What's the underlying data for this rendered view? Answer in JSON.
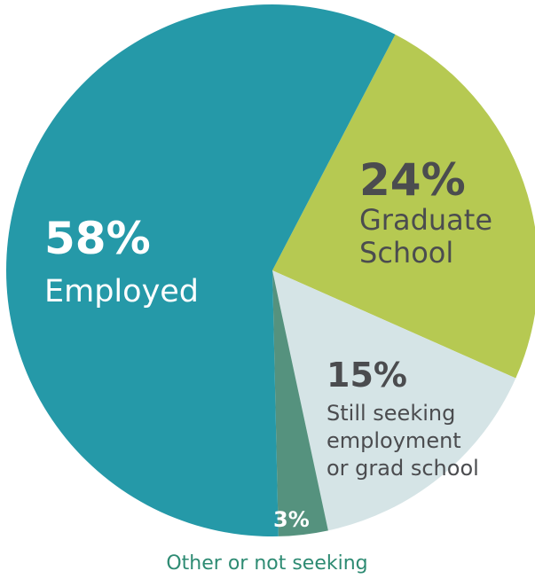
{
  "chart_data": {
    "type": "pie",
    "title": "",
    "slices": [
      {
        "label": "Employed",
        "value": 58,
        "value_label": "58%",
        "color": "#2599a8",
        "text_color": "#ffffff",
        "label_lines": [
          "Employed"
        ]
      },
      {
        "label": "Graduate School",
        "value": 24,
        "value_label": "24%",
        "color": "#b6c952",
        "text_color": "#4b4c4f",
        "label_lines": [
          "Graduate",
          "School"
        ]
      },
      {
        "label": "Still seeking employment or grad school",
        "value": 15,
        "value_label": "15%",
        "color": "#d5e4e6",
        "text_color": "#4b4c4f",
        "label_lines": [
          "Still seeking",
          "employment",
          "or grad school"
        ]
      },
      {
        "label": "Other or not seeking",
        "value": 3,
        "value_label": "3%",
        "color": "#55927e",
        "text_color": "#ffffff",
        "label_lines": [
          "Other or not seeking"
        ]
      }
    ]
  }
}
